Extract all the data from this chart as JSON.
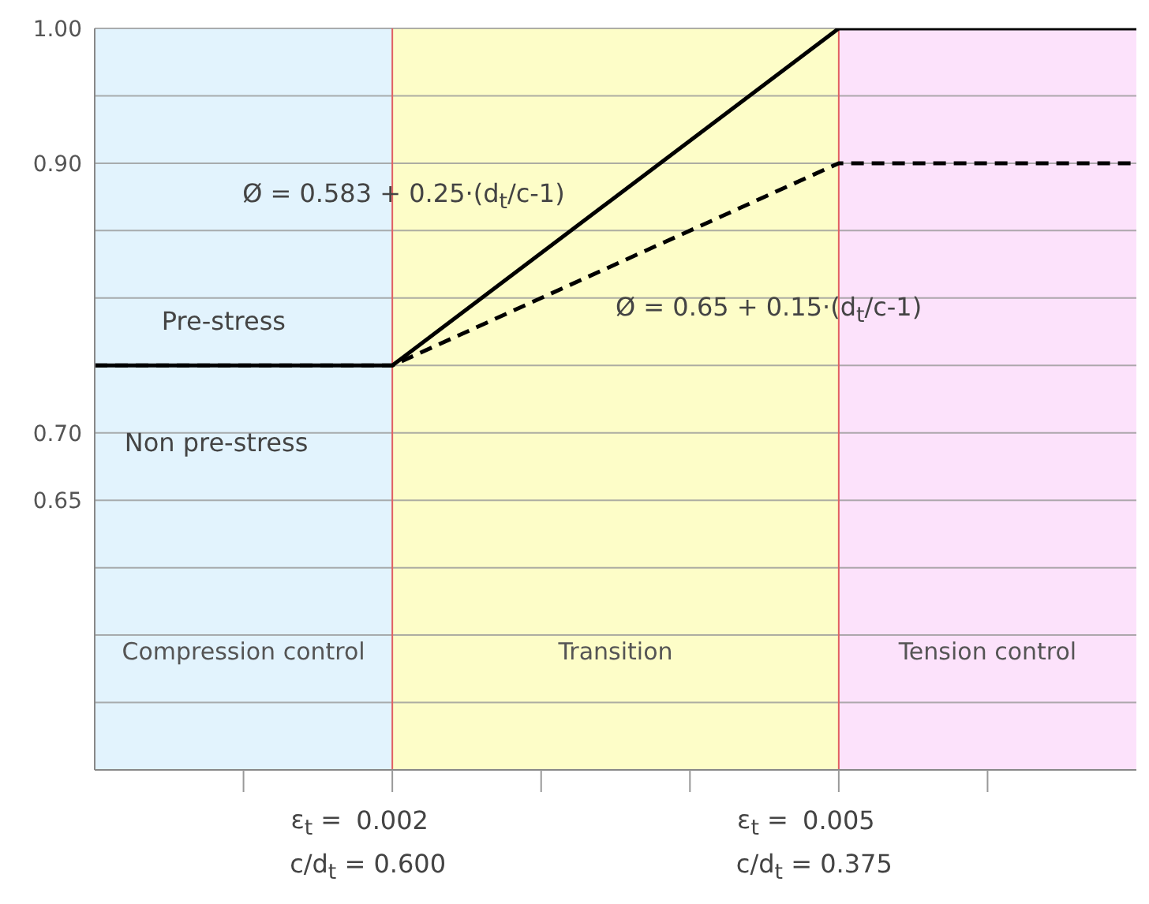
{
  "chart_data": {
    "type": "line",
    "x": [
      0,
      0.002,
      0.005,
      0.007
    ],
    "series": [
      {
        "color": "#000000",
        "line_style": "solid",
        "values": [
          0.75,
          0.75,
          1.0,
          1.0
        ]
      },
      {
        "color": "#000000",
        "line_style": "dashed",
        "values": [
          0.75,
          0.75,
          0.9,
          0.9
        ]
      }
    ],
    "xlim": [
      0,
      0.007
    ],
    "xticks": [
      {
        "value": 0.001,
        "label": null
      },
      0.002,
      {
        "value": 0.003,
        "label": null
      },
      {
        "value": 0.004,
        "label": null
      },
      0.005,
      {
        "value": 0.006,
        "label": null
      }
    ],
    "ylim": [
      0.45,
      1.0
    ],
    "yticks": [
      {
        "value": 0.5,
        "label": null
      },
      {
        "value": 0.55,
        "label": null
      },
      {
        "value": 0.6,
        "label": null
      },
      {
        "value": 0.65,
        "label": "0.65"
      },
      {
        "value": 0.7,
        "label": "0.70"
      },
      {
        "value": 0.75,
        "label": null
      },
      {
        "value": 0.8,
        "label": null
      },
      {
        "value": 0.85,
        "label": null
      },
      {
        "value": 0.9,
        "label": "0.90"
      },
      {
        "value": 0.95,
        "label": null
      },
      {
        "value": 1.0,
        "label": "1.00"
      }
    ],
    "grid": "y",
    "marker": "none",
    "bands": [
      {
        "axis": "x",
        "from": 0,
        "to": 0.002,
        "label": "Compression control",
        "color": "#e2f3fd"
      },
      {
        "axis": "x",
        "from": 0.002,
        "to": 0.005,
        "label": "Transition",
        "color": "#fdfdc8"
      },
      {
        "axis": "x",
        "from": 0.005,
        "to": 0.007,
        "label": "Tension  control",
        "color": "#fce2fb"
      }
    ],
    "ref_lines": [
      {
        "axis": "x",
        "value": 0.002,
        "color": "#e06060"
      },
      {
        "axis": "x",
        "value": 0.005,
        "color": "#e06060"
      }
    ],
    "annotations": [
      "Ø = 0.583 + 0.25·(d$_{t}$/c-1)",
      "Ø = 0.65 + 0.15·(d$_{t}$/c-1)",
      "Pre-stress",
      "Non pre-stress",
      "ε$_{t}$   =",
      "c/d$_{t}$ = 0.600",
      "ε$_{t}$   =",
      "c/d$_{t}$ = 0.375"
    ]
  }
}
